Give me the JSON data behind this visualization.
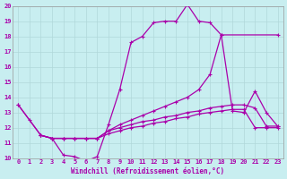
{
  "background_color": "#c8eef0",
  "grid_color": "#b0d8da",
  "line_color": "#aa00aa",
  "xlabel": "Windchill (Refroidissement éolien,°C)",
  "xlim": [
    -0.5,
    23.5
  ],
  "ylim": [
    10,
    20
  ],
  "yticks": [
    10,
    11,
    12,
    13,
    14,
    15,
    16,
    17,
    18,
    19,
    20
  ],
  "xticks": [
    0,
    1,
    2,
    3,
    4,
    5,
    6,
    7,
    8,
    9,
    10,
    11,
    12,
    13,
    14,
    15,
    16,
    17,
    18,
    19,
    20,
    21,
    22,
    23
  ],
  "lines": [
    {
      "x": [
        0,
        1,
        2,
        3,
        4,
        5,
        6,
        7,
        8,
        9,
        10,
        11,
        12,
        13,
        14,
        15,
        16,
        17,
        18,
        19,
        20,
        21,
        22,
        23
      ],
      "y": [
        13.5,
        12.5,
        11.5,
        11.3,
        10.2,
        10.1,
        9.8,
        10.1,
        12.2,
        14.5,
        17.6,
        18.0,
        18.9,
        19.0,
        19.0,
        20.1,
        19.0,
        18.9,
        18.1,
        13.1,
        13.0,
        14.4,
        13.0,
        12.1
      ]
    },
    {
      "x": [
        0,
        2,
        3,
        4,
        5,
        6,
        7,
        8,
        9,
        10,
        11,
        12,
        13,
        14,
        15,
        16,
        17,
        18,
        23
      ],
      "y": [
        13.5,
        11.5,
        11.3,
        11.3,
        11.3,
        11.3,
        11.3,
        11.8,
        12.2,
        12.5,
        12.8,
        13.1,
        13.4,
        13.7,
        14.0,
        14.5,
        15.5,
        18.1,
        18.1
      ]
    },
    {
      "x": [
        2,
        3,
        4,
        5,
        6,
        7,
        8,
        9,
        10,
        11,
        12,
        13,
        14,
        15,
        16,
        17,
        18,
        19,
        20,
        21,
        22,
        23
      ],
      "y": [
        11.5,
        11.3,
        11.3,
        11.3,
        11.3,
        11.3,
        11.8,
        12.0,
        12.2,
        12.4,
        12.5,
        12.7,
        12.8,
        13.0,
        13.1,
        13.3,
        13.4,
        13.5,
        13.5,
        13.3,
        12.1,
        12.1
      ]
    },
    {
      "x": [
        2,
        3,
        4,
        5,
        6,
        7,
        8,
        9,
        10,
        11,
        12,
        13,
        14,
        15,
        16,
        17,
        18,
        19,
        20,
        21,
        22,
        23
      ],
      "y": [
        11.5,
        11.3,
        11.3,
        11.3,
        11.3,
        11.3,
        11.6,
        11.8,
        12.0,
        12.1,
        12.3,
        12.4,
        12.6,
        12.7,
        12.9,
        13.0,
        13.1,
        13.2,
        13.2,
        12.0,
        12.0,
        12.0
      ]
    }
  ],
  "marker": "+",
  "marker_size": 3,
  "linewidth": 0.9
}
